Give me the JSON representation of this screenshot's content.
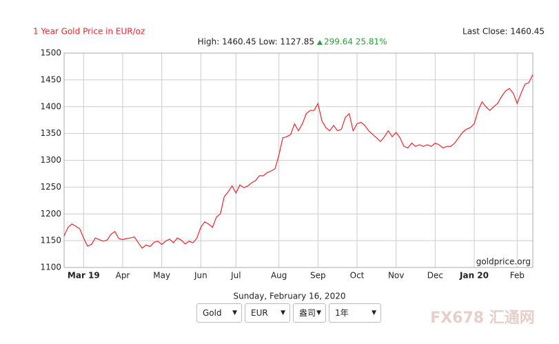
{
  "chart_data": {
    "type": "line",
    "title": "1 Year Gold Price in EUR/oz",
    "high_low": "High: 1460.45 Low: 1127.85",
    "change": "299.64 25.81%",
    "last_close": "Last Close: 1460.45",
    "source": "goldprice.org",
    "date": "Sunday, February 16, 2020",
    "controls": [
      "Gold",
      "EUR",
      "盎司",
      "1年"
    ],
    "watermark": "FX678 汇通网",
    "categories": [
      null,
      null,
      null,
      null,
      null,
      "Mar 19",
      null,
      null,
      null,
      null,
      null,
      null,
      null,
      null,
      null,
      "Apr",
      null,
      null,
      null,
      null,
      null,
      null,
      null,
      null,
      null,
      "May",
      null,
      null,
      null,
      null,
      null,
      null,
      null,
      null,
      null,
      "Jun",
      null,
      null,
      null,
      null,
      null,
      null,
      null,
      null,
      "Jul",
      null,
      null,
      null,
      null,
      null,
      null,
      null,
      null,
      null,
      null,
      "Aug",
      null,
      null,
      null,
      null,
      null,
      null,
      null,
      null,
      null,
      "Sep",
      null,
      null,
      null,
      null,
      null,
      null,
      null,
      null,
      null,
      "Oct",
      null,
      null,
      null,
      null,
      null,
      null,
      null,
      null,
      null,
      "Nov",
      null,
      null,
      null,
      null,
      null,
      null,
      null,
      null,
      null,
      "Dec",
      null,
      null,
      null,
      null,
      null,
      null,
      null,
      null,
      null,
      "Jan 20",
      null,
      null,
      null,
      null,
      null,
      null,
      null,
      null,
      null,
      null,
      "Feb",
      null,
      null,
      null,
      null
    ],
    "series": [
      {
        "color": "#e8262b",
        "values": [
          1159,
          1175,
          1181,
          1177,
          1172,
          1155,
          1140,
          1143,
          1155,
          1152,
          1149,
          1151,
          1162,
          1167,
          1154,
          1152,
          1154,
          1155,
          1157,
          1146,
          1136,
          1142,
          1139,
          1147,
          1149,
          1143,
          1149,
          1153,
          1146,
          1155,
          1151,
          1144,
          1149,
          1146,
          1155,
          1175,
          1185,
          1181,
          1175,
          1194,
          1200,
          1232,
          1241,
          1252,
          1239,
          1254,
          1249,
          1252,
          1258,
          1262,
          1271,
          1271,
          1277,
          1280,
          1284,
          1310,
          1342,
          1344,
          1348,
          1368,
          1355,
          1368,
          1387,
          1393,
          1393,
          1406,
          1374,
          1361,
          1355,
          1365,
          1355,
          1358,
          1380,
          1387,
          1355,
          1368,
          1371,
          1365,
          1355,
          1348,
          1342,
          1335,
          1344,
          1355,
          1344,
          1352,
          1342,
          1326,
          1323,
          1332,
          1326,
          1329,
          1326,
          1329,
          1326,
          1332,
          1329,
          1323,
          1326,
          1326,
          1332,
          1342,
          1352,
          1358,
          1361,
          1368,
          1393,
          1409,
          1400,
          1393,
          1400,
          1406,
          1419,
          1429,
          1434,
          1425,
          1406,
          1425,
          1442,
          1445,
          1460
        ]
      }
    ],
    "ylim": [
      1100,
      1500
    ],
    "yticks": [
      1100,
      1150,
      1200,
      1250,
      1300,
      1350,
      1400,
      1450,
      1500
    ],
    "grid": true
  }
}
